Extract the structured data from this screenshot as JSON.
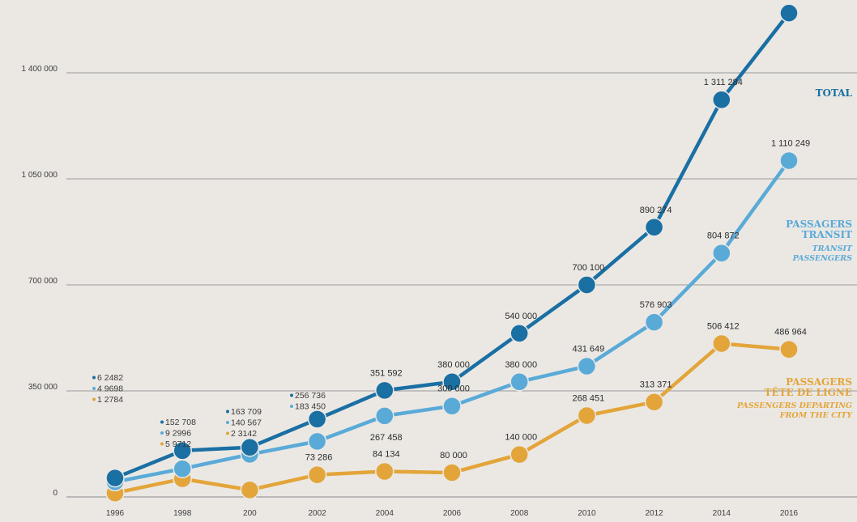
{
  "chart_data": {
    "type": "line",
    "x": [
      "1996",
      "1998",
      "200",
      "2002",
      "2004",
      "2006",
      "2008",
      "2010",
      "2012",
      "2014",
      "2016"
    ],
    "y_ticks": [
      "0",
      "350 000",
      "700 000",
      "1 050 000",
      "1 400 000"
    ],
    "ylim": [
      0,
      1650000
    ],
    "grid": "horizontal",
    "series": [
      {
        "key": "total",
        "title": "TOTAL",
        "subtitle": [],
        "color": "#1a6fa3",
        "values": [
          62482,
          152708,
          163709,
          256736,
          351592,
          380000,
          540000,
          700100,
          890274,
          1311284,
          1597213
        ],
        "labels": [
          "",
          "",
          "",
          "",
          "351 592",
          "380 000",
          "540 000",
          "700 100",
          "890 274",
          "1 311 284",
          "1 597 213"
        ]
      },
      {
        "key": "transit",
        "title": [
          "PASSAGERS",
          "TRANSIT"
        ],
        "subtitle": [
          "TRANSIT",
          "PASSENGERS"
        ],
        "color": "#5aaad8",
        "values": [
          49698,
          92996,
          140567,
          183450,
          267458,
          300000,
          380000,
          431649,
          576903,
          804872,
          1110249
        ],
        "labels": [
          "",
          "",
          "",
          "",
          "267 458",
          "300 000",
          "380 000",
          "431 649",
          "576 903",
          "804 872",
          "1 110 249"
        ]
      },
      {
        "key": "departing",
        "title": [
          "PASSAGERS",
          "TÊTE DE LIGNE"
        ],
        "subtitle": [
          "PASSENGERS DEPARTING",
          "FROM THE CITY"
        ],
        "color": "#e3a53a",
        "values": [
          12784,
          59712,
          23142,
          73286,
          84134,
          80000,
          140000,
          268451,
          313371,
          506412,
          486964
        ],
        "labels": [
          "",
          "",
          "",
          "73 286",
          "84 134",
          "80 000",
          "140 000",
          "268 451",
          "313 371",
          "506 412",
          "486 964"
        ]
      }
    ],
    "early_labels": [
      {
        "x": "1996",
        "items": [
          {
            "text": "6 2482",
            "color": "#1a6fa3"
          },
          {
            "text": "4 9698",
            "color": "#5aaad8"
          },
          {
            "text": "1 2784",
            "color": "#e3a53a"
          }
        ]
      },
      {
        "x": "1998",
        "items": [
          {
            "text": "152 708",
            "color": "#1a6fa3"
          },
          {
            "text": "9 2996",
            "color": "#5aaad8"
          },
          {
            "text": "5 9712",
            "color": "#e3a53a"
          }
        ]
      },
      {
        "x": "200",
        "items": [
          {
            "text": "163 709",
            "color": "#1a6fa3"
          },
          {
            "text": "140 567",
            "color": "#5aaad8"
          },
          {
            "text": "2 3142",
            "color": "#e3a53a"
          }
        ]
      },
      {
        "x": "2002",
        "items": [
          {
            "text": "256 736",
            "color": "#1a6fa3"
          },
          {
            "text": "183 450",
            "color": "#5aaad8"
          }
        ]
      }
    ]
  }
}
